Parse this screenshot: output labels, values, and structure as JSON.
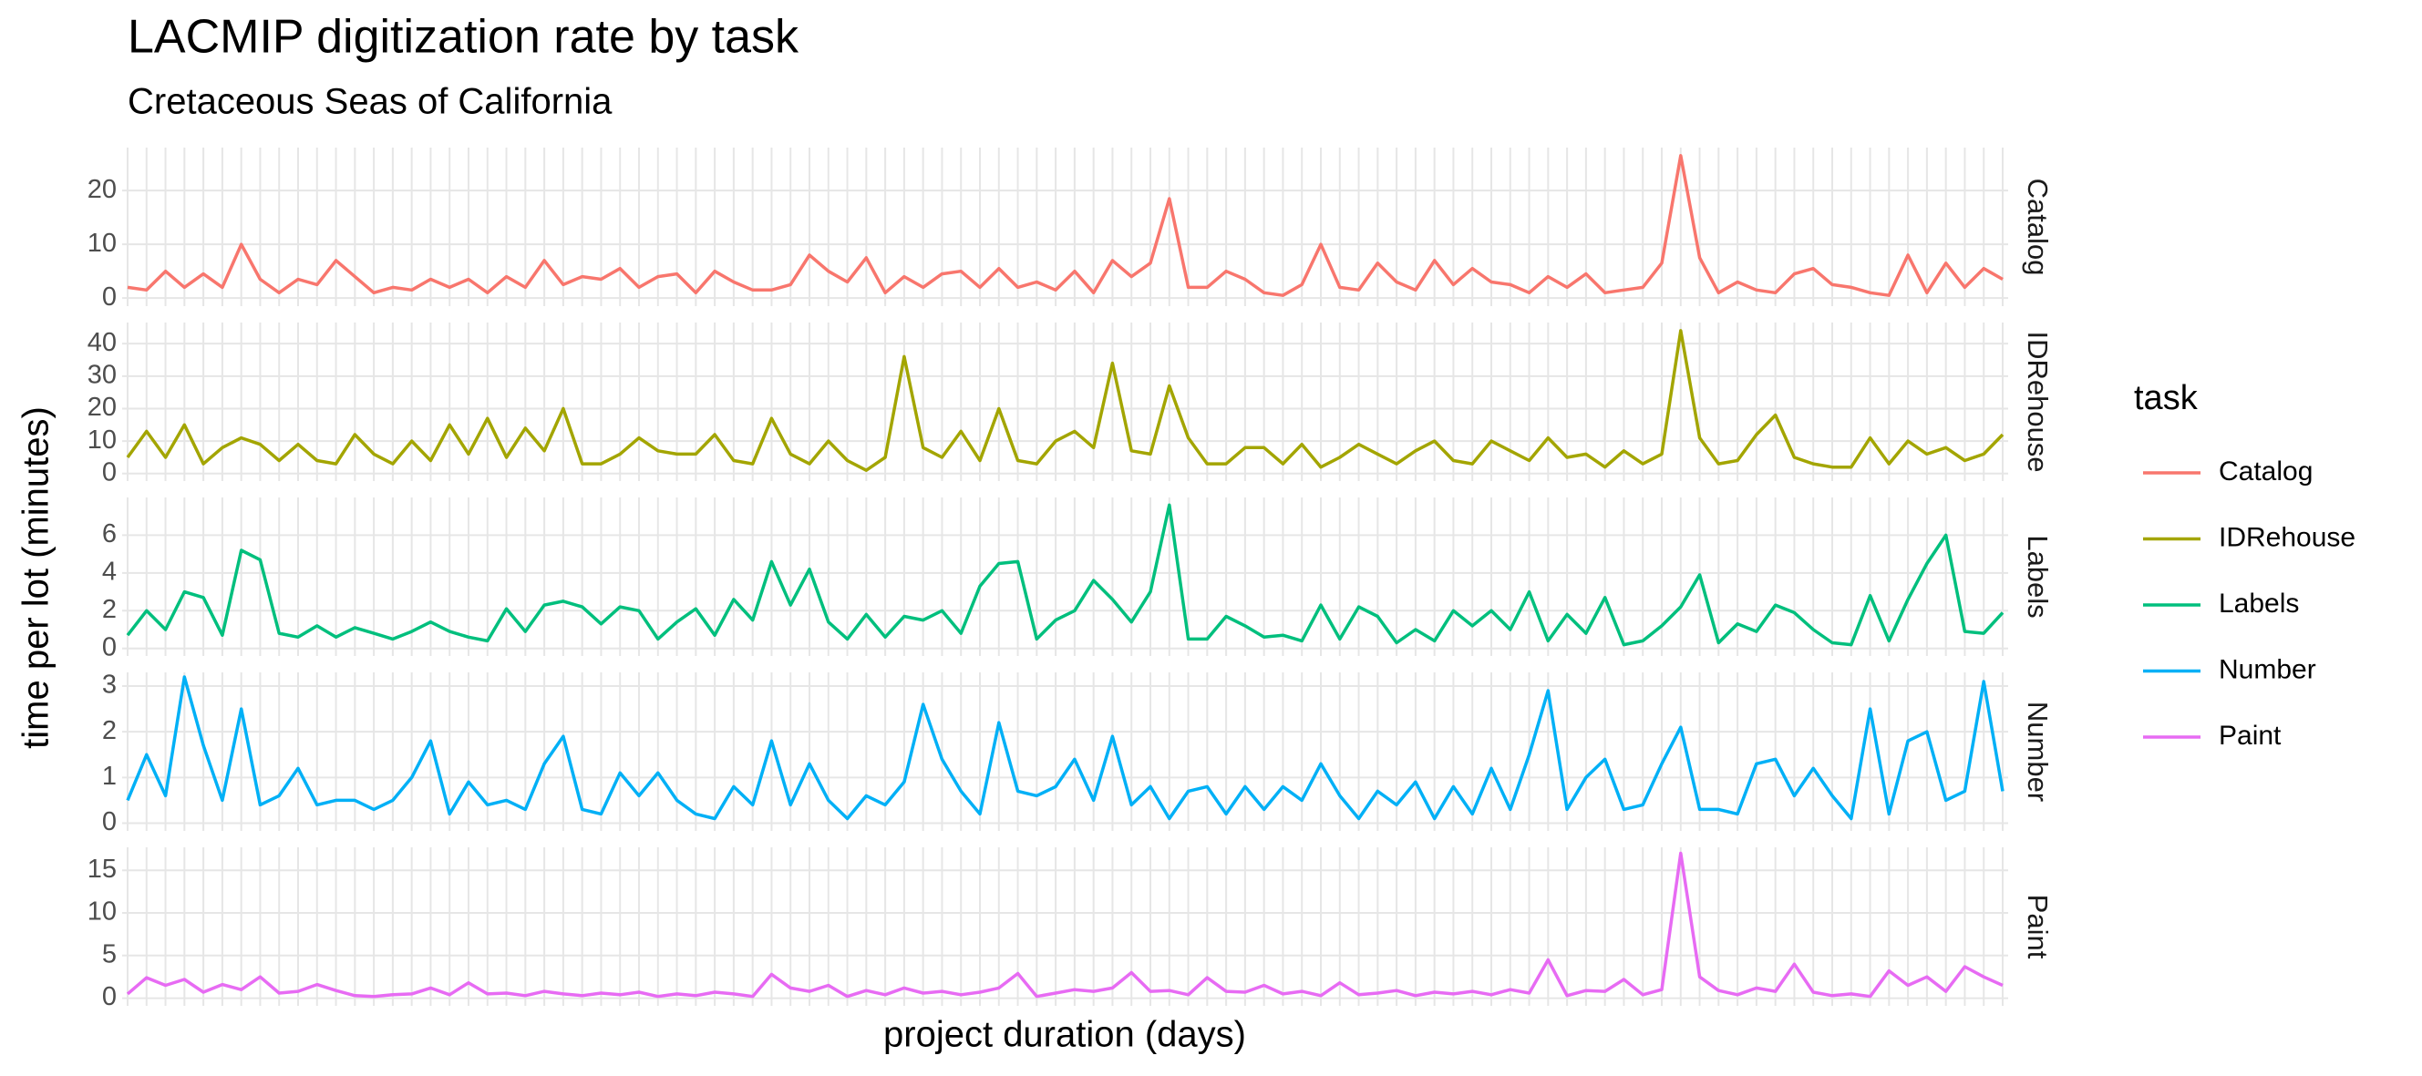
{
  "chart_data": {
    "type": "line",
    "title": "LACMIP digitization rate by task",
    "subtitle": "Cretaceous Seas of California",
    "x_label": "project duration (days)",
    "y_label": "time per lot (minutes)",
    "legend_title": "task",
    "grid": true,
    "legend_position": "right",
    "series": [
      {
        "name": "Catalog",
        "color": "#F8766D",
        "ylim": [
          -1.5,
          28
        ],
        "yticks": [
          0,
          10,
          20
        ],
        "values": [
          2,
          1.5,
          5,
          2,
          4.5,
          2,
          10,
          3.5,
          1,
          3.5,
          2.5,
          7,
          4,
          1,
          2,
          1.5,
          3.5,
          2,
          3.5,
          1,
          4,
          2,
          7,
          2.5,
          4,
          3.5,
          5.5,
          2,
          4,
          4.5,
          1,
          5,
          3,
          1.5,
          1.5,
          2.5,
          8,
          5,
          3,
          7.5,
          1,
          4,
          2,
          4.5,
          5,
          2,
          5.5,
          2,
          3,
          1.5,
          5,
          1,
          7,
          4,
          6.5,
          18.5,
          2,
          2,
          5,
          3.5,
          1,
          0.5,
          2.5,
          10,
          2,
          1.5,
          6.5,
          3,
          1.5,
          7,
          2.5,
          5.5,
          3,
          2.5,
          1,
          4,
          2,
          4.5,
          1,
          1.5,
          2,
          6.5,
          26.5,
          7.5,
          1,
          3,
          1.5,
          1,
          4.5,
          5.5,
          2.5,
          2,
          1,
          0.5,
          8,
          1,
          6.5,
          2,
          5.5,
          3.5
        ]
      },
      {
        "name": "IDRehouse",
        "color": "#A3A500",
        "ylim": [
          -2.3,
          46.5
        ],
        "yticks": [
          0,
          10,
          20,
          30,
          40
        ],
        "values": [
          5,
          13,
          5,
          15,
          3,
          8,
          11,
          9,
          4,
          9,
          4,
          3,
          12,
          6,
          3,
          10,
          4,
          15,
          6,
          17,
          5,
          14,
          7,
          20,
          3,
          3,
          6,
          11,
          7,
          6,
          6,
          12,
          4,
          3,
          17,
          6,
          3,
          10,
          4,
          1,
          5,
          36,
          8,
          5,
          13,
          4,
          20,
          4,
          3,
          10,
          13,
          8,
          34,
          7,
          6,
          27,
          11,
          3,
          3,
          8,
          8,
          3,
          9,
          2,
          5,
          9,
          6,
          3,
          7,
          10,
          4,
          3,
          10,
          7,
          4,
          11,
          5,
          6,
          2,
          7,
          3,
          6,
          44,
          11,
          3,
          4,
          12,
          18,
          5,
          3,
          2,
          2,
          11,
          3,
          10,
          6,
          8,
          4,
          6,
          12
        ]
      },
      {
        "name": "Labels",
        "color": "#00BF7D",
        "ylim": [
          -0.4,
          8
        ],
        "yticks": [
          0,
          2,
          4,
          6
        ],
        "values": [
          0.7,
          2,
          1,
          3,
          2.7,
          0.7,
          5.2,
          4.7,
          0.8,
          0.6,
          1.2,
          0.6,
          1.1,
          0.8,
          0.5,
          0.9,
          1.4,
          0.9,
          0.6,
          0.4,
          2.1,
          0.9,
          2.3,
          2.5,
          2.2,
          1.3,
          2.2,
          2,
          0.5,
          1.4,
          2.1,
          0.7,
          2.6,
          1.5,
          4.6,
          2.3,
          4.2,
          1.4,
          0.5,
          1.8,
          0.6,
          1.7,
          1.5,
          2,
          0.8,
          3.3,
          4.5,
          4.6,
          0.5,
          1.5,
          2,
          3.6,
          2.6,
          1.4,
          3,
          7.6,
          0.5,
          0.5,
          1.7,
          1.2,
          0.6,
          0.7,
          0.4,
          2.3,
          0.5,
          2.2,
          1.7,
          0.3,
          1,
          0.4,
          2,
          1.2,
          2,
          1,
          3,
          0.4,
          1.8,
          0.8,
          2.7,
          0.2,
          0.4,
          1.2,
          2.2,
          3.9,
          0.3,
          1.3,
          0.9,
          2.3,
          1.9,
          1,
          0.3,
          0.2,
          2.8,
          0.4,
          2.6,
          4.5,
          6,
          0.9,
          0.8,
          1.9
        ]
      },
      {
        "name": "Number",
        "color": "#00B0F6",
        "ylim": [
          -0.17,
          3.3
        ],
        "yticks": [
          0,
          1,
          2,
          3
        ],
        "values": [
          0.5,
          1.5,
          0.6,
          3.2,
          1.7,
          0.5,
          2.5,
          0.4,
          0.6,
          1.2,
          0.4,
          0.5,
          0.5,
          0.3,
          0.5,
          1,
          1.8,
          0.2,
          0.9,
          0.4,
          0.5,
          0.3,
          1.3,
          1.9,
          0.3,
          0.2,
          1.1,
          0.6,
          1.1,
          0.5,
          0.2,
          0.1,
          0.8,
          0.4,
          1.8,
          0.4,
          1.3,
          0.5,
          0.1,
          0.6,
          0.4,
          0.9,
          2.6,
          1.4,
          0.7,
          0.2,
          2.2,
          0.7,
          0.6,
          0.8,
          1.4,
          0.5,
          1.9,
          0.4,
          0.8,
          0.1,
          0.7,
          0.8,
          0.2,
          0.8,
          0.3,
          0.8,
          0.5,
          1.3,
          0.6,
          0.1,
          0.7,
          0.4,
          0.9,
          0.1,
          0.8,
          0.2,
          1.2,
          0.3,
          1.5,
          2.9,
          0.3,
          1,
          1.4,
          0.3,
          0.4,
          1.3,
          2.1,
          0.3,
          0.3,
          0.2,
          1.3,
          1.4,
          0.6,
          1.2,
          0.6,
          0.1,
          2.5,
          0.2,
          1.8,
          2,
          0.5,
          0.7,
          3.1,
          0.7
        ]
      },
      {
        "name": "Paint",
        "color": "#E76BF3",
        "ylim": [
          -0.9,
          17.7
        ],
        "yticks": [
          0,
          5,
          10,
          15
        ],
        "values": [
          0.5,
          2.4,
          1.5,
          2.2,
          0.7,
          1.6,
          1,
          2.5,
          0.6,
          0.8,
          1.6,
          0.9,
          0.3,
          0.2,
          0.4,
          0.5,
          1.2,
          0.4,
          1.8,
          0.5,
          0.6,
          0.3,
          0.8,
          0.5,
          0.3,
          0.6,
          0.4,
          0.7,
          0.2,
          0.5,
          0.3,
          0.7,
          0.5,
          0.2,
          2.8,
          1.2,
          0.8,
          1.5,
          0.2,
          0.9,
          0.4,
          1.2,
          0.6,
          0.8,
          0.4,
          0.7,
          1.2,
          2.9,
          0.2,
          0.6,
          1,
          0.8,
          1.2,
          3,
          0.8,
          0.9,
          0.4,
          2.4,
          0.8,
          0.7,
          1.5,
          0.5,
          0.8,
          0.3,
          1.8,
          0.4,
          0.6,
          0.9,
          0.3,
          0.7,
          0.5,
          0.8,
          0.4,
          1,
          0.6,
          4.5,
          0.3,
          0.9,
          0.8,
          2.2,
          0.4,
          1,
          17,
          2.5,
          0.9,
          0.4,
          1.2,
          0.8,
          4,
          0.7,
          0.3,
          0.5,
          0.2,
          3.2,
          1.5,
          2.5,
          0.8,
          3.7,
          2.5,
          1.5
        ]
      }
    ]
  }
}
